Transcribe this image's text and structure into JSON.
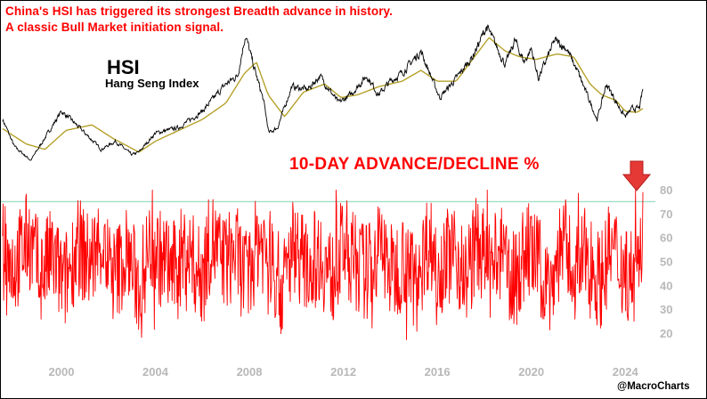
{
  "headline": {
    "line1": "China's HSI has triggered its strongest Breadth advance in history.",
    "line2": "A classic Bull Market initiation signal."
  },
  "credit": "@MacroCharts",
  "colors": {
    "price": "#000000",
    "moving_average": "#b5a12a",
    "advance_decline": "#ff0000",
    "threshold_line": "#9fe0c4",
    "arrow": "#e53935",
    "axis_text": "#b8b8b8"
  },
  "chart_data": [
    {
      "type": "line",
      "title": "HSI",
      "subtitle": "Hang Seng Index",
      "series": [
        {
          "role": "price",
          "x": [
            1997.5,
            1998.0,
            1998.7,
            1999.5,
            2000.0,
            2000.4,
            2001.0,
            2001.7,
            2002.3,
            2003.0,
            2003.3,
            2004.0,
            2005.0,
            2006.0,
            2007.0,
            2007.5,
            2007.83,
            2008.2,
            2008.6,
            2008.83,
            2009.2,
            2009.8,
            2010.5,
            2011.0,
            2011.8,
            2012.3,
            2013.0,
            2013.5,
            2014.0,
            2014.5,
            2015.3,
            2016.1,
            2016.8,
            2017.5,
            2018.1,
            2018.5,
            2018.9,
            2019.3,
            2019.7,
            2020.0,
            2020.3,
            2021.0,
            2021.5,
            2022.0,
            2022.8,
            2023.2,
            2023.7,
            2024.0,
            2024.3,
            2024.6,
            2024.75
          ],
          "values": [
            15500,
            10500,
            8000,
            13500,
            17000,
            15500,
            13000,
            10000,
            11500,
            9000,
            9500,
            13000,
            14000,
            17000,
            22000,
            23500,
            31000,
            25000,
            19000,
            13000,
            14000,
            21500,
            21000,
            23500,
            18500,
            20000,
            23500,
            20000,
            22500,
            24000,
            28000,
            19500,
            23000,
            27000,
            32500,
            29000,
            25500,
            30000,
            26000,
            28500,
            23000,
            30000,
            28500,
            24000,
            15500,
            22000,
            18000,
            16000,
            17500,
            17500,
            21000
          ]
        },
        {
          "role": "moving_average",
          "x": [
            1997.5,
            1998.5,
            1999.3,
            2000.2,
            2001.3,
            2002.2,
            2003.3,
            2004.0,
            2005.0,
            2006.0,
            2007.0,
            2007.8,
            2008.3,
            2008.8,
            2009.5,
            2010.3,
            2011.2,
            2011.9,
            2012.6,
            2013.5,
            2014.5,
            2015.3,
            2016.0,
            2016.8,
            2017.5,
            2018.2,
            2018.9,
            2019.5,
            2020.2,
            2021.1,
            2021.8,
            2022.5,
            2023.0,
            2023.6,
            2024.0,
            2024.5,
            2024.75
          ],
          "values": [
            13800,
            11000,
            10000,
            13500,
            14500,
            12000,
            9500,
            11500,
            13500,
            15500,
            18500,
            24000,
            26000,
            20000,
            16000,
            20500,
            22000,
            19500,
            20000,
            21500,
            22500,
            24500,
            22500,
            22500,
            26500,
            30500,
            28000,
            27000,
            26500,
            27500,
            27000,
            22000,
            20000,
            19000,
            17000,
            16800,
            17500
          ]
        }
      ]
    },
    {
      "type": "line",
      "title": "10-DAY ADVANCE/DECLINE %",
      "ylim": [
        15,
        82
      ],
      "yticks": [
        "80",
        "70",
        "60",
        "50",
        "40",
        "30",
        "20"
      ],
      "xticks": [
        "2000",
        "2004",
        "2008",
        "2012",
        "2016",
        "2020",
        "2024"
      ],
      "threshold": 75,
      "series": [
        {
          "role": "advance_decline",
          "x": [
            1997.5,
            1998.0,
            1998.6,
            1999.1,
            1999.6,
            2000.1,
            2000.7,
            2001.2,
            2001.7,
            2002.2,
            2002.8,
            2003.3,
            2003.8,
            2004.3,
            2004.8,
            2005.3,
            2005.9,
            2006.4,
            2006.9,
            2007.4,
            2007.9,
            2008.4,
            2008.9,
            2009.4,
            2009.9,
            2010.4,
            2011.0,
            2011.5,
            2012.0,
            2012.5,
            2013.0,
            2013.6,
            2014.1,
            2014.6,
            2015.1,
            2015.6,
            2016.1,
            2016.7,
            2017.2,
            2017.7,
            2018.2,
            2018.7,
            2019.3,
            2019.8,
            2020.3,
            2020.8,
            2021.3,
            2021.9,
            2022.4,
            2022.9,
            2023.4,
            2023.9,
            2024.4,
            2024.7,
            2024.75
          ],
          "values": [
            60,
            45,
            72,
            38,
            55,
            28,
            65,
            48,
            70,
            35,
            58,
            25,
            67,
            50,
            42,
            62,
            36,
            71,
            47,
            59,
            30,
            73,
            52,
            22,
            69,
            44,
            57,
            33,
            66,
            49,
            40,
            64,
            37,
            55,
            28,
            70,
            46,
            61,
            34,
            68,
            41,
            56,
            30,
            63,
            47,
            25,
            69,
            39,
            58,
            31,
            62,
            44,
            36,
            52,
            79
          ]
        }
      ]
    }
  ]
}
